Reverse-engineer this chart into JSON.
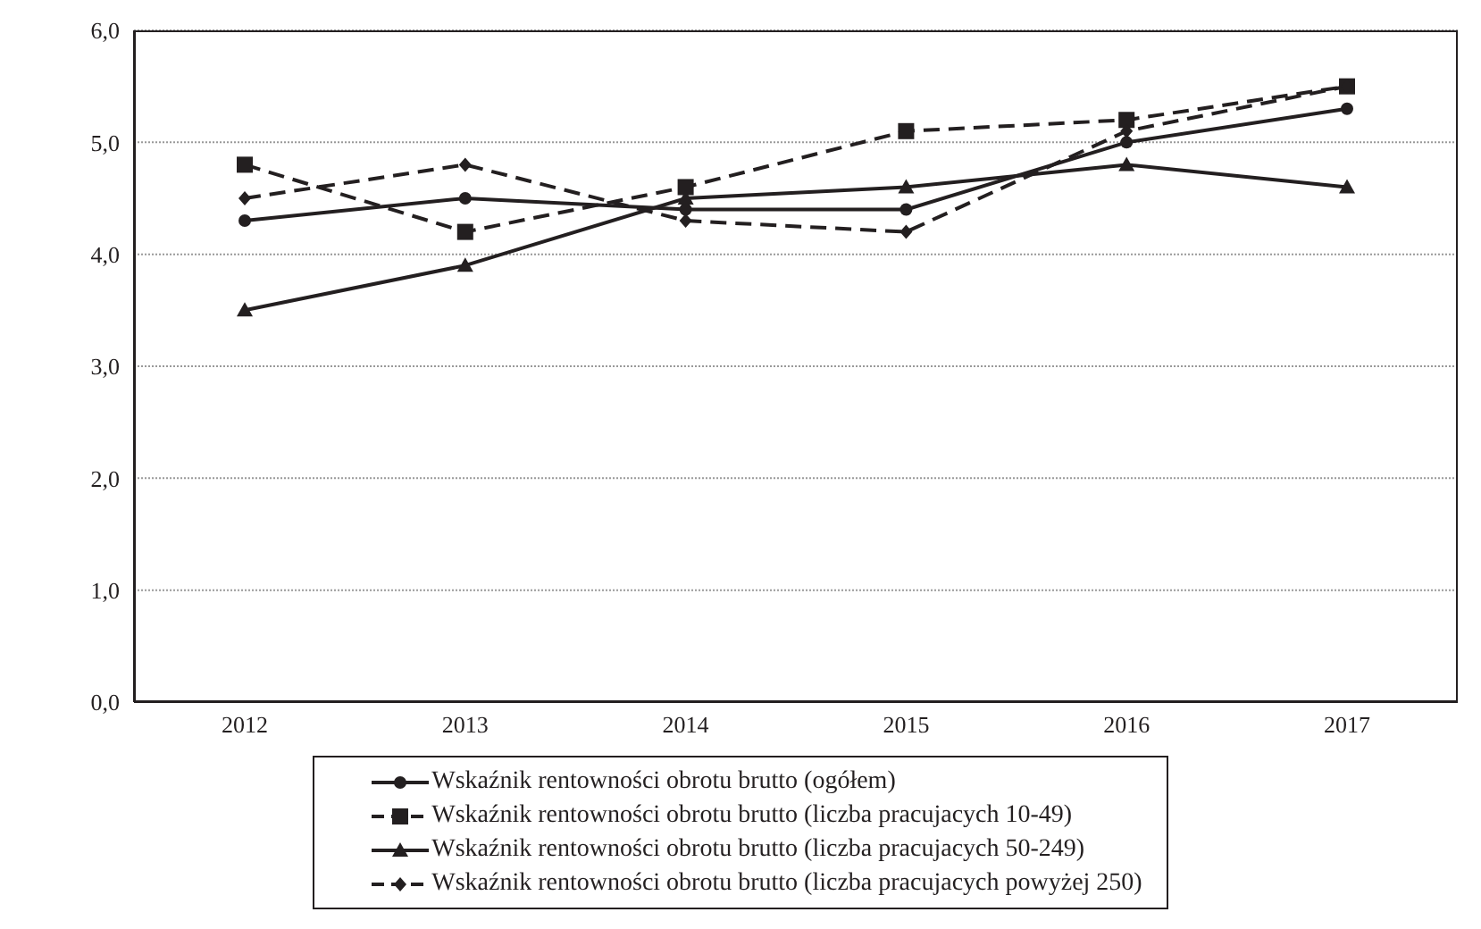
{
  "chart_data": {
    "type": "line",
    "categories": [
      "2012",
      "2013",
      "2014",
      "2015",
      "2016",
      "2017"
    ],
    "ylim": [
      0,
      6
    ],
    "yticks": [
      {
        "value": 0,
        "label": "0,0"
      },
      {
        "value": 1,
        "label": "1,0"
      },
      {
        "value": 2,
        "label": "2,0"
      },
      {
        "value": 3,
        "label": "3,0"
      },
      {
        "value": 4,
        "label": "4,0"
      },
      {
        "value": 5,
        "label": "5,0"
      },
      {
        "value": 6,
        "label": "6,0"
      }
    ],
    "grid": "y",
    "legend": "bottom",
    "series": [
      {
        "name": "Wskaźnik rentowności obrotu brutto (ogółem)",
        "color": "#231f20",
        "marker": "circle",
        "line_style": "solid",
        "values": [
          4.3,
          4.5,
          4.4,
          4.4,
          5.0,
          5.3
        ]
      },
      {
        "name": "Wskaźnik rentowności obrotu brutto (liczba pracujacych 10-49)",
        "color": "#231f20",
        "marker": "square",
        "line_style": "dashed",
        "values": [
          4.8,
          4.2,
          4.6,
          5.1,
          5.2,
          5.5
        ]
      },
      {
        "name": "Wskaźnik rentowności obrotu brutto (liczba pracujacych 50-249)",
        "color": "#231f20",
        "marker": "triangle",
        "line_style": "solid",
        "values": [
          3.5,
          3.9,
          4.5,
          4.6,
          4.8,
          4.6
        ]
      },
      {
        "name": "Wskaźnik rentowności obrotu brutto (liczba pracujacych powyżej 250)",
        "color": "#231f20",
        "marker": "diamond",
        "line_style": "dashed",
        "values": [
          4.5,
          4.8,
          4.3,
          4.2,
          5.1,
          5.5
        ]
      }
    ]
  }
}
